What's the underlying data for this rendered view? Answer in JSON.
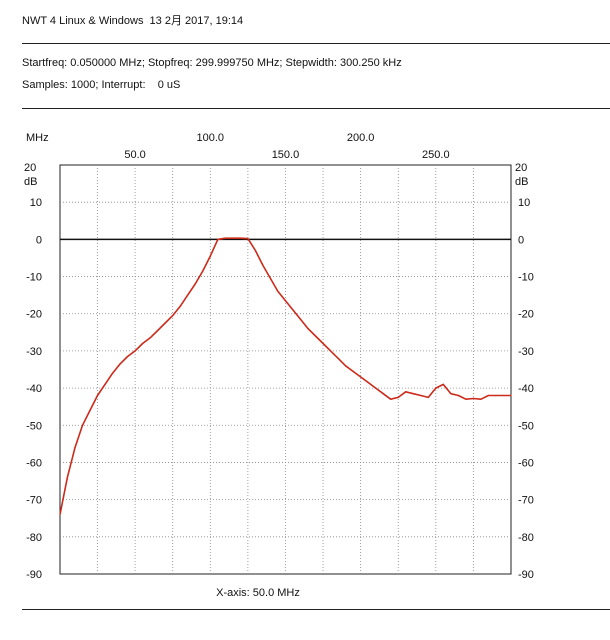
{
  "header": {
    "title": "NWT 4 Linux & Windows  13 2月 2017, 19:14",
    "sweep_line1": "Startfreq: 0.050000 MHz; Stopfreq: 299.999750 MHz; Stepwidth: 300.250 kHz",
    "sweep_line2": "Samples: 1000; Interrupt:    0 uS"
  },
  "chart_data": {
    "type": "line",
    "title": "",
    "xlabel": "X-axis: 50.0 MHz",
    "x_unit": "MHz",
    "ylabel": "dB",
    "y_unit_top": "20",
    "xlim": [
      0.05,
      300
    ],
    "ylim": [
      -90,
      20
    ],
    "grid": true,
    "x_ticks_upper": [
      100.0,
      200.0
    ],
    "x_ticks_lower": [
      50.0,
      150.0,
      250.0
    ],
    "x_tick_labels_upper": [
      "100.0",
      "200.0"
    ],
    "x_tick_labels_lower": [
      "50.0",
      "150.0",
      "250.0"
    ],
    "y_ticks": [
      20,
      10,
      0,
      -10,
      -20,
      -30,
      -40,
      -50,
      -60,
      -70,
      -80,
      -90
    ],
    "y_tick_labels": [
      "20",
      "10",
      "0",
      "-10",
      "-20",
      "-30",
      "-40",
      "-50",
      "-60",
      "-70",
      "-80",
      "-90"
    ],
    "series": [
      {
        "color": "#cc2a1a",
        "x": [
          0.05,
          5,
          10,
          15,
          20,
          25,
          30,
          35,
          40,
          45,
          50,
          55,
          60,
          65,
          70,
          75,
          80,
          85,
          90,
          95,
          100,
          105,
          110,
          115,
          120,
          125,
          130,
          135,
          140,
          145,
          150,
          155,
          160,
          165,
          170,
          175,
          180,
          185,
          190,
          195,
          200,
          205,
          210,
          215,
          220,
          225,
          230,
          235,
          240,
          245,
          250,
          255,
          260,
          265,
          270,
          275,
          280,
          285,
          290,
          295,
          300
        ],
        "y": [
          -74,
          -64,
          -56,
          -50,
          -46,
          -42,
          -39,
          -36,
          -33.5,
          -31.5,
          -30,
          -28,
          -26.5,
          -24.5,
          -22.5,
          -20.5,
          -18,
          -15,
          -12,
          -8.5,
          -4.5,
          0,
          0.3,
          0.3,
          0.3,
          0.2,
          -3,
          -7,
          -10.5,
          -14,
          -16.5,
          -19,
          -21.5,
          -24,
          -26,
          -28,
          -30,
          -32,
          -34,
          -35.5,
          -37,
          -38.5,
          -40,
          -41.5,
          -43,
          -42.5,
          -41,
          -41.5,
          -42,
          -42.5,
          -40,
          -39,
          -41.5,
          -42,
          -43,
          -42.8,
          -43,
          -42,
          -42,
          -42,
          -42
        ]
      }
    ]
  }
}
